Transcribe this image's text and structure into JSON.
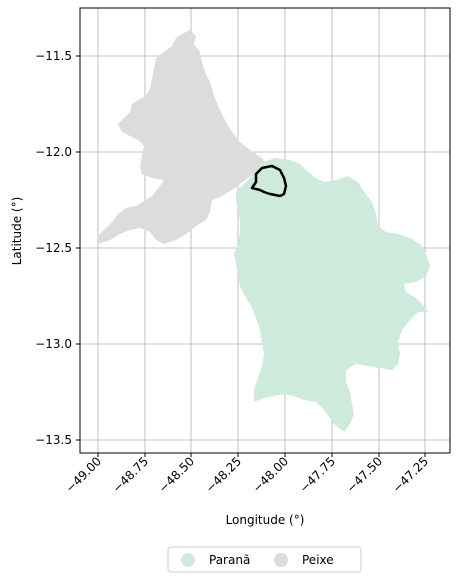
{
  "map": {
    "xlabel": "Longitude (°)",
    "ylabel": "Latitude (°)",
    "x_ticks": [
      "−49.00",
      "−48.75",
      "−48.50",
      "−48.25",
      "−48.00",
      "−47.75",
      "−47.50",
      "−47.25"
    ],
    "y_ticks": [
      "−11.5",
      "−12.0",
      "−12.5",
      "−13.0",
      "−13.5"
    ],
    "grid": true,
    "legend": [
      {
        "label": "Paranã",
        "color": "#cdeadc"
      },
      {
        "label": "Peixe",
        "color": "#dcdcdc"
      }
    ],
    "outline_color": "#000000"
  }
}
